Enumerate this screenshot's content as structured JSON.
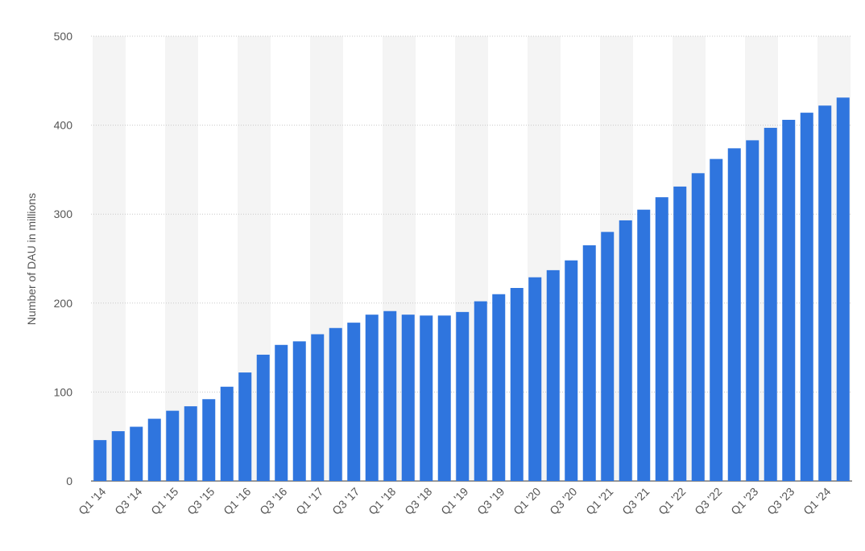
{
  "chart_data": {
    "type": "bar",
    "y_label": "Number of DAU in millions",
    "categories": [
      "Q1 '14",
      null,
      "Q3 '14",
      null,
      "Q1 '15",
      null,
      "Q3 '15",
      null,
      "Q1 '16",
      null,
      "Q3 '16",
      null,
      "Q1 '17",
      null,
      "Q3 '17",
      null,
      "Q1 '18",
      null,
      "Q3 '18",
      null,
      "Q1 '19",
      null,
      "Q3 '19",
      null,
      "Q1 '20",
      null,
      "Q3 '20",
      null,
      "Q1 '21",
      null,
      "Q3 '21",
      null,
      "Q1 '22",
      null,
      "Q3 '22",
      null,
      "Q1 '23",
      null,
      "Q3 '23",
      null,
      "Q1 '24",
      null
    ],
    "values": [
      46,
      56,
      61,
      70,
      79,
      84,
      92,
      106,
      122,
      142,
      153,
      157,
      165,
      172,
      178,
      187,
      191,
      187,
      186,
      186,
      190,
      202,
      210,
      217,
      229,
      237,
      248,
      265,
      280,
      293,
      305,
      319,
      331,
      346,
      362,
      374,
      383,
      397,
      406,
      414,
      422,
      431
    ],
    "color": "#2f75de",
    "ylim": [
      0,
      500
    ],
    "yticks": [
      0,
      100,
      200,
      300,
      400,
      500
    ],
    "grid": true
  }
}
